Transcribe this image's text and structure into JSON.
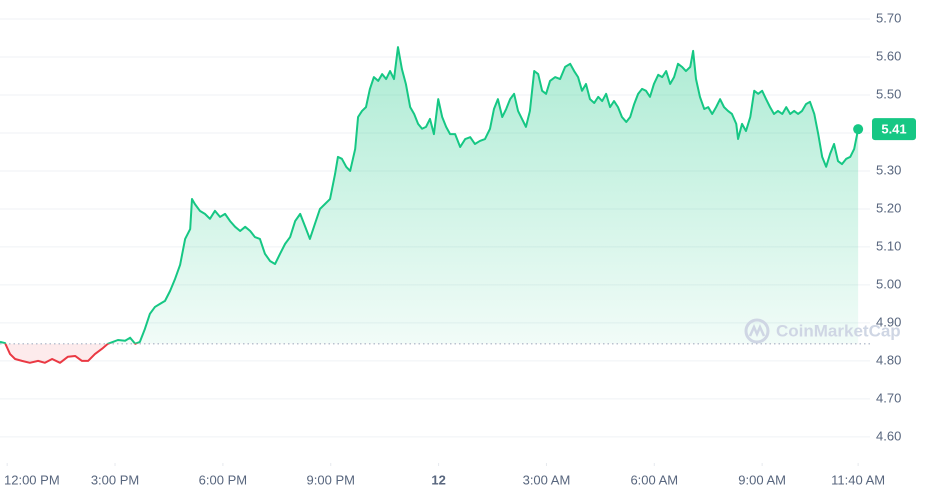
{
  "chart_data": {
    "type": "line",
    "color_up": "#16c784",
    "color_down": "#ea3943",
    "baseline": 4.845,
    "watermark": "CoinMarketCap",
    "grid": true,
    "xlim": [
      -0.2,
      24
    ],
    "ylim": [
      4.447,
      5.75
    ],
    "xticks": [
      {
        "value": 0,
        "label": "12:00 PM"
      },
      {
        "value": 3,
        "label": "3:00 PM"
      },
      {
        "value": 6,
        "label": "6:00 PM"
      },
      {
        "value": 9,
        "label": "9:00 PM"
      },
      12,
      {
        "value": 15,
        "label": "3:00 AM"
      },
      {
        "value": 18,
        "label": "6:00 AM"
      },
      {
        "value": 21,
        "label": "9:00 AM"
      },
      {
        "value": 23.67,
        "label": "11:40 AM"
      }
    ],
    "yticks": [
      {
        "value": 4.6,
        "label": "4.60"
      },
      {
        "value": 4.7,
        "label": "4.70"
      },
      {
        "value": 4.8,
        "label": "4.80"
      },
      {
        "value": 4.9,
        "label": "4.90"
      },
      {
        "value": 5.0,
        "label": "5.00"
      },
      {
        "value": 5.1,
        "label": "5.10"
      },
      {
        "value": 5.2,
        "label": "5.20"
      },
      {
        "value": 5.3,
        "label": "5.30"
      },
      {
        "value": 5.4,
        "label": "5.40"
      },
      {
        "value": 5.5,
        "label": "5.50"
      },
      {
        "value": 5.6,
        "label": "5.60"
      },
      {
        "value": 5.7,
        "label": "5.70"
      }
    ],
    "x": [
      -0.2,
      -0.06,
      0.08,
      0.22,
      0.41,
      0.63,
      0.86,
      1.05,
      1.25,
      1.47,
      1.69,
      1.89,
      2.08,
      2.25,
      2.44,
      2.64,
      2.8,
      2.94,
      3.08,
      3.28,
      3.42,
      3.56,
      3.69,
      3.83,
      3.97,
      4.11,
      4.25,
      4.39,
      4.53,
      4.67,
      4.81,
      4.95,
      5.09,
      5.14,
      5.22,
      5.36,
      5.5,
      5.64,
      5.78,
      5.92,
      6.06,
      6.2,
      6.34,
      6.48,
      6.62,
      6.76,
      6.89,
      7.03,
      7.17,
      7.31,
      7.45,
      7.59,
      7.73,
      7.87,
      8.01,
      8.15,
      8.29,
      8.42,
      8.56,
      8.7,
      8.84,
      8.98,
      9.12,
      9.2,
      9.31,
      9.43,
      9.54,
      9.68,
      9.76,
      9.87,
      9.98,
      10.09,
      10.2,
      10.32,
      10.43,
      10.54,
      10.65,
      10.76,
      10.87,
      10.98,
      11.09,
      11.21,
      11.32,
      11.43,
      11.54,
      11.65,
      11.76,
      11.87,
      11.99,
      12.1,
      12.21,
      12.32,
      12.46,
      12.6,
      12.74,
      12.88,
      13.01,
      13.15,
      13.29,
      13.43,
      13.54,
      13.65,
      13.77,
      13.88,
      13.99,
      14.1,
      14.21,
      14.32,
      14.43,
      14.54,
      14.66,
      14.77,
      14.88,
      14.99,
      15.1,
      15.24,
      15.38,
      15.52,
      15.66,
      15.77,
      15.88,
      15.99,
      16.1,
      16.21,
      16.33,
      16.44,
      16.55,
      16.66,
      16.77,
      16.88,
      16.99,
      17.1,
      17.22,
      17.33,
      17.44,
      17.55,
      17.66,
      17.77,
      17.88,
      17.99,
      18.11,
      18.22,
      18.33,
      18.44,
      18.55,
      18.66,
      18.77,
      18.88,
      19.0,
      19.08,
      19.16,
      19.27,
      19.39,
      19.5,
      19.61,
      19.72,
      19.83,
      19.94,
      20.05,
      20.16,
      20.28,
      20.33,
      20.44,
      20.55,
      20.67,
      20.78,
      20.89,
      21.0,
      21.11,
      21.22,
      21.33,
      21.44,
      21.56,
      21.67,
      21.78,
      21.89,
      22.0,
      22.11,
      22.22,
      22.33,
      22.45,
      22.56,
      22.67,
      22.78,
      22.89,
      23.0,
      23.11,
      23.22,
      23.34,
      23.45,
      23.56,
      23.67
    ],
    "values": [
      4.85,
      4.847,
      4.818,
      4.805,
      4.8,
      4.795,
      4.8,
      4.795,
      4.805,
      4.795,
      4.811,
      4.813,
      4.8,
      4.8,
      4.818,
      4.832,
      4.845,
      4.85,
      4.855,
      4.853,
      4.861,
      4.845,
      4.85,
      4.884,
      4.924,
      4.942,
      4.95,
      4.958,
      4.984,
      5.016,
      5.053,
      5.121,
      5.147,
      5.226,
      5.213,
      5.195,
      5.187,
      5.174,
      5.195,
      5.179,
      5.187,
      5.168,
      5.153,
      5.142,
      5.153,
      5.142,
      5.126,
      5.121,
      5.082,
      5.063,
      5.055,
      5.082,
      5.108,
      5.126,
      5.168,
      5.187,
      5.153,
      5.121,
      5.161,
      5.2,
      5.213,
      5.226,
      5.292,
      5.337,
      5.332,
      5.311,
      5.3,
      5.358,
      5.442,
      5.458,
      5.468,
      5.516,
      5.547,
      5.537,
      5.555,
      5.542,
      5.563,
      5.542,
      5.626,
      5.568,
      5.529,
      5.468,
      5.45,
      5.424,
      5.411,
      5.416,
      5.437,
      5.397,
      5.489,
      5.442,
      5.416,
      5.397,
      5.397,
      5.363,
      5.384,
      5.389,
      5.371,
      5.379,
      5.384,
      5.411,
      5.463,
      5.489,
      5.442,
      5.463,
      5.489,
      5.503,
      5.458,
      5.437,
      5.416,
      5.458,
      5.563,
      5.555,
      5.511,
      5.503,
      5.537,
      5.547,
      5.542,
      5.574,
      5.582,
      5.563,
      5.547,
      5.511,
      5.529,
      5.489,
      5.479,
      5.495,
      5.484,
      5.503,
      5.468,
      5.484,
      5.468,
      5.442,
      5.429,
      5.442,
      5.476,
      5.503,
      5.516,
      5.511,
      5.495,
      5.529,
      5.553,
      5.547,
      5.563,
      5.529,
      5.547,
      5.582,
      5.574,
      5.563,
      5.574,
      5.616,
      5.542,
      5.495,
      5.463,
      5.468,
      5.45,
      5.468,
      5.489,
      5.468,
      5.458,
      5.45,
      5.424,
      5.384,
      5.424,
      5.405,
      5.442,
      5.511,
      5.503,
      5.511,
      5.489,
      5.468,
      5.45,
      5.458,
      5.45,
      5.468,
      5.45,
      5.458,
      5.45,
      5.458,
      5.476,
      5.482,
      5.45,
      5.397,
      5.337,
      5.311,
      5.345,
      5.371,
      5.326,
      5.318,
      5.332,
      5.337,
      5.358,
      5.41
    ]
  }
}
